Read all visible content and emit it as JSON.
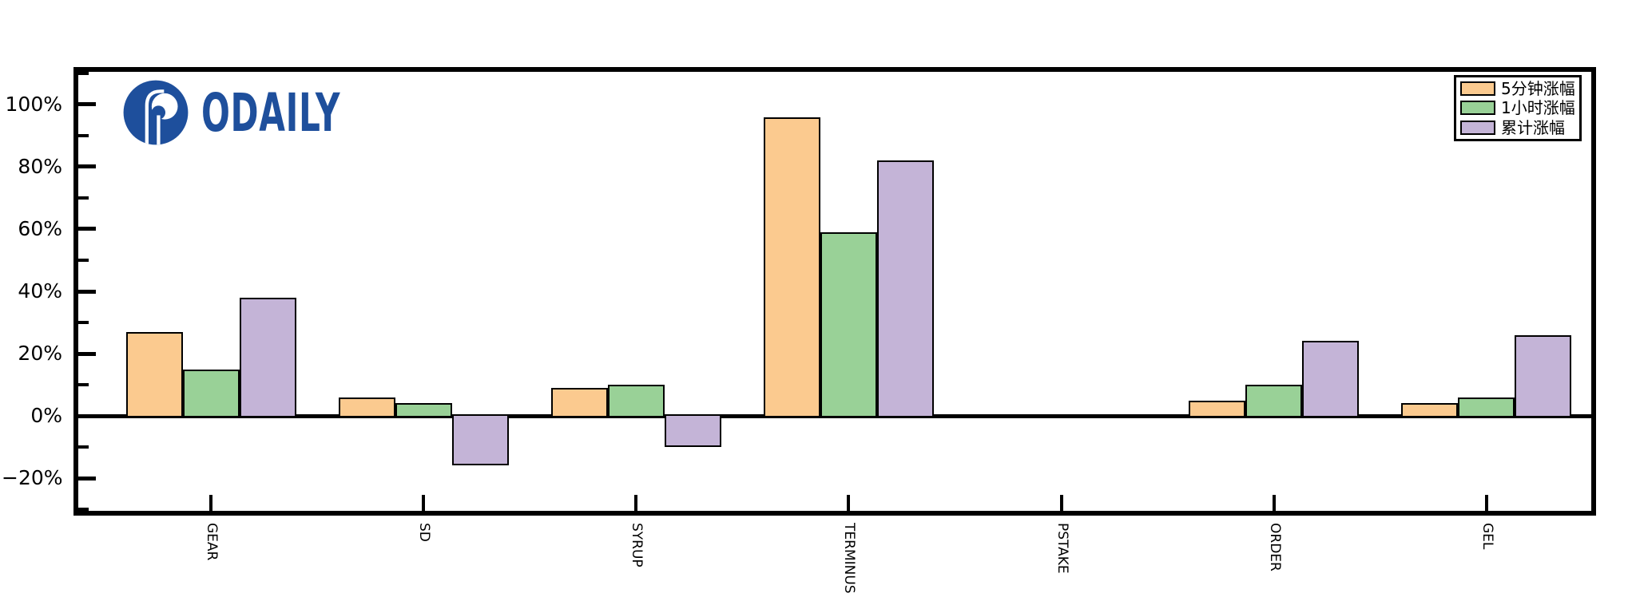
{
  "logo": {
    "text": "ODAILY",
    "color": "#1E4F9C"
  },
  "chart_data": {
    "type": "bar",
    "title": "",
    "xlabel": "",
    "ylabel": "",
    "grid": false,
    "categories": [
      "GEAR",
      "SD",
      "SYRUP",
      "TERMINUS",
      "PSTAKE",
      "ORDER",
      "GEL"
    ],
    "series": [
      {
        "name": "5分钟涨幅",
        "color": "#FBCA8F",
        "values": [
          27,
          6,
          9,
          96,
          0,
          5,
          4
        ]
      },
      {
        "name": "1小时涨幅",
        "color": "#99D197",
        "values": [
          15,
          4,
          10,
          59,
          0,
          10,
          6
        ]
      },
      {
        "name": "累计涨幅",
        "color": "#C4B4D7",
        "values": [
          38,
          -16,
          -10,
          82,
          0,
          24,
          26
        ]
      }
    ],
    "ylim": [
      -30.5,
      110.5
    ],
    "yticks_major": [
      -20,
      0,
      20,
      40,
      60,
      80,
      100
    ],
    "ytick_labels": [
      "−20%",
      "0%",
      "20%",
      "40%",
      "60%",
      "80%",
      "100%"
    ],
    "yticks_minor": [
      -30,
      -10,
      10,
      30,
      50,
      70,
      90,
      110
    ],
    "bar_edge_color": "#000000",
    "axis_color": "#000000",
    "legend": {
      "position": "top-right",
      "entries": [
        "5分钟涨幅",
        "1小时涨幅",
        "累计涨幅"
      ]
    }
  }
}
